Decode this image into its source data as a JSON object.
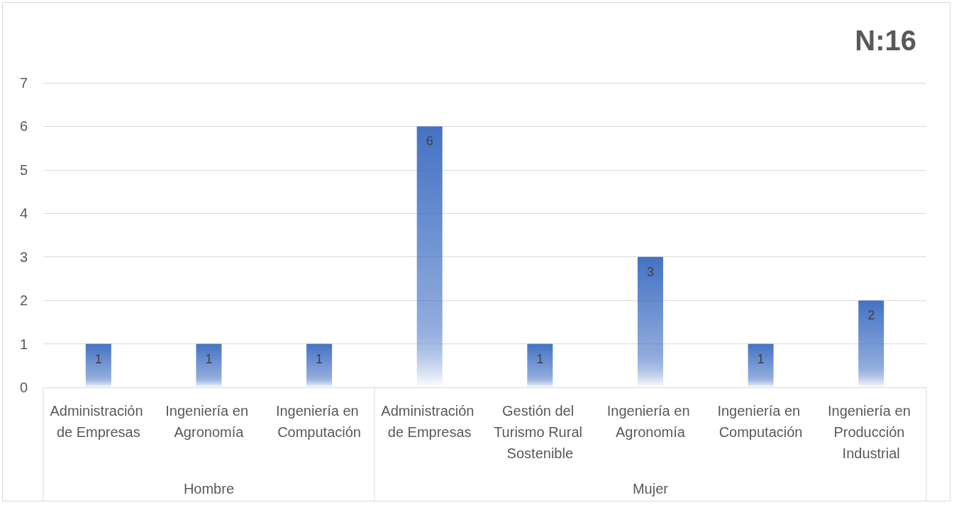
{
  "chart_data": {
    "type": "bar",
    "title": "N:16",
    "categories": [
      "Administración de Empresas",
      "Ingeniería en Agronomía",
      "Ingeniería en Computación",
      "Administración de Empresas",
      "Gestión del Turismo Rural Sostenible",
      "Ingeniería en Agronomía",
      "Ingeniería en Computación",
      "Ingeniería en Producción Industrial"
    ],
    "values": [
      1,
      1,
      1,
      6,
      1,
      3,
      1,
      2
    ],
    "color": "#4472c4",
    "annotations": [
      "Hombre",
      "Mujer"
    ],
    "ylim": [
      0,
      7
    ],
    "yticks": [
      0,
      1,
      2,
      3,
      4,
      5,
      6,
      7
    ],
    "grid": "y",
    "data_labels": true
  }
}
